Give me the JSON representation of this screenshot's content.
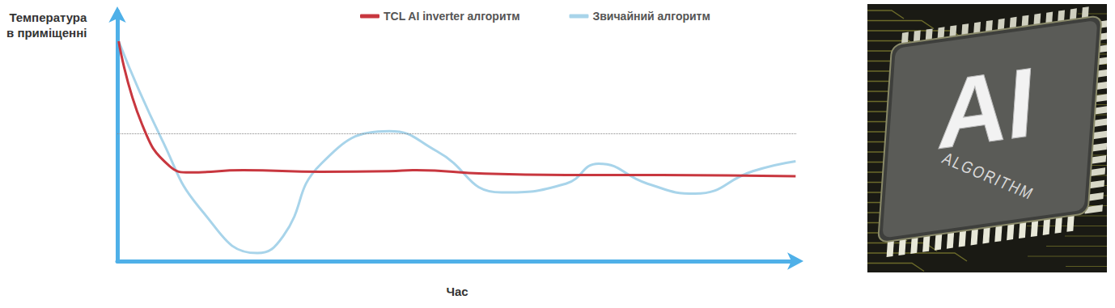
{
  "chart_data": {
    "type": "line",
    "x_label": "Час",
    "y_label": "Температура в приміщенні",
    "xlim": [
      0,
      100
    ],
    "ylim": [
      0,
      100
    ],
    "tick_labels": false,
    "grid": false,
    "legend": "top",
    "reference_line": 51,
    "series": [
      {
        "name": "TCL AI inverter алгоритм",
        "color": "#c8373f",
        "x": [
          0.2,
          3.6,
          7.7,
          10.7,
          18.5,
          30,
          40,
          44,
          54,
          66,
          80,
          99.8
        ],
        "values": [
          88,
          55,
          38,
          35.5,
          36.4,
          35.8,
          36,
          36.4,
          35,
          34.5,
          34.5,
          34
        ]
      },
      {
        "name": "Звичайний алгоритм",
        "color": "#a8d4ea",
        "x": [
          0.2,
          6.5,
          12.5,
          20.6,
          24.4,
          30,
          40,
          47,
          56.5,
          66,
          70.8,
          78,
          85,
          93.5,
          99.8
        ],
        "values": [
          88,
          49,
          20,
          3.2,
          10,
          39,
          52,
          44,
          27.5,
          31,
          39,
          31,
          27,
          36,
          40
        ]
      }
    ]
  },
  "illustration": {
    "texts": [
      "AI",
      "ALGORITHM"
    ]
  }
}
